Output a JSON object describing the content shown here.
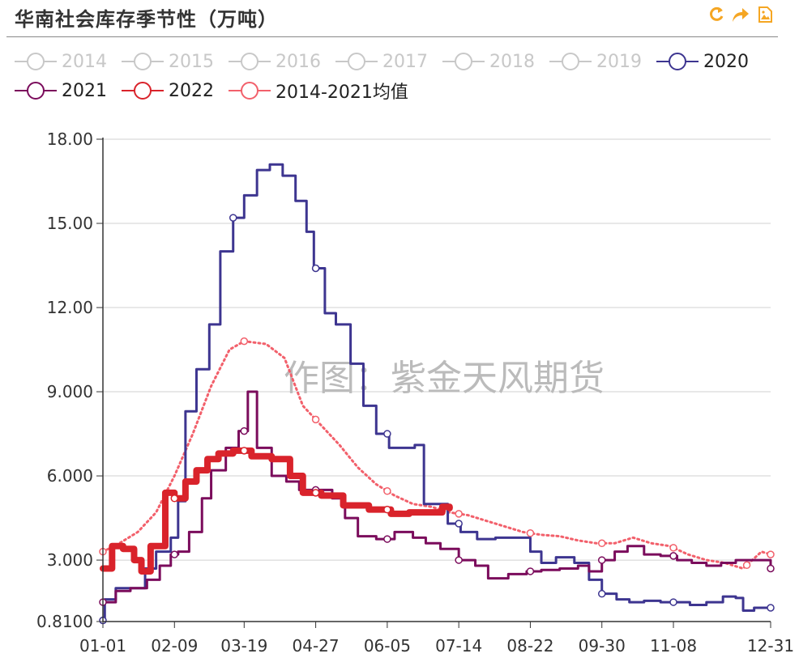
{
  "title": "华南社会库存季节性（万吨）",
  "toolbox": [
    "refresh-icon",
    "share-icon",
    "save-image-icon"
  ],
  "colors": {
    "accent": "#f5a623",
    "off": "#c8c8c8",
    "s2020": "#3d3590",
    "s2021": "#7b0c5c",
    "s2022": "#d9232b",
    "avg": "#f2606b",
    "grid": "#d0d0d0",
    "axis": "#333333"
  },
  "legend": [
    {
      "name": "2014",
      "on": false
    },
    {
      "name": "2015",
      "on": false
    },
    {
      "name": "2016",
      "on": false
    },
    {
      "name": "2017",
      "on": false
    },
    {
      "name": "2018",
      "on": false
    },
    {
      "name": "2019",
      "on": false
    },
    {
      "name": "2020",
      "on": true,
      "color": "#3d3590"
    },
    {
      "name": "2021",
      "on": true,
      "color": "#7b0c5c"
    },
    {
      "name": "2022",
      "on": true,
      "color": "#d9232b"
    },
    {
      "name": "2014-2021均值",
      "on": true,
      "color": "#f2606b"
    }
  ],
  "watermark": "作图：紫金天风期货",
  "chart_data": {
    "type": "line",
    "title": "华南社会库存季节性（万吨）",
    "x_domain_days": [
      1,
      365
    ],
    "xticks": [
      {
        "day": 1,
        "label": "01-01"
      },
      {
        "day": 40,
        "label": "02-09"
      },
      {
        "day": 78,
        "label": "03-19"
      },
      {
        "day": 117,
        "label": "04-27"
      },
      {
        "day": 156,
        "label": "06-05"
      },
      {
        "day": 195,
        "label": "07-14"
      },
      {
        "day": 234,
        "label": "08-22"
      },
      {
        "day": 273,
        "label": "09-30"
      },
      {
        "day": 312,
        "label": "11-08"
      },
      {
        "day": 365,
        "label": "12-31"
      }
    ],
    "ylim": [
      0.81,
      18.0
    ],
    "yticks": [
      {
        "value": 0.81,
        "label": "0.8100"
      },
      {
        "value": 3.0,
        "label": "3.000"
      },
      {
        "value": 6.0,
        "label": "6.000"
      },
      {
        "value": 9.0,
        "label": "9.000"
      },
      {
        "value": 12.0,
        "label": "12.00"
      },
      {
        "value": 15.0,
        "label": "15.00"
      },
      {
        "value": 18.0,
        "label": "18.00"
      }
    ],
    "series": [
      {
        "name": "2020",
        "step": true,
        "color": "#3d3590",
        "width": 3,
        "points": [
          [
            1,
            0.85
          ],
          [
            2,
            1.6
          ],
          [
            8,
            2.0
          ],
          [
            24,
            2.7
          ],
          [
            30,
            3.3
          ],
          [
            38,
            3.8
          ],
          [
            42,
            5.1
          ],
          [
            46,
            8.3
          ],
          [
            52,
            9.8
          ],
          [
            59,
            11.4
          ],
          [
            65,
            14.0
          ],
          [
            72,
            15.2
          ],
          [
            78,
            16.0
          ],
          [
            85,
            16.9
          ],
          [
            92,
            17.1
          ],
          [
            99,
            16.7
          ],
          [
            106,
            15.8
          ],
          [
            112,
            14.7
          ],
          [
            116,
            13.4
          ],
          [
            122,
            11.8
          ],
          [
            128,
            11.4
          ],
          [
            136,
            10.0
          ],
          [
            143,
            8.5
          ],
          [
            150,
            7.5
          ],
          [
            157,
            7.0
          ],
          [
            164,
            7.0
          ],
          [
            171,
            7.1
          ],
          [
            176,
            5.0
          ],
          [
            189,
            4.3
          ],
          [
            196,
            4.0
          ],
          [
            205,
            3.75
          ],
          [
            215,
            3.8
          ],
          [
            225,
            3.8
          ],
          [
            234,
            3.3
          ],
          [
            240,
            2.9
          ],
          [
            248,
            3.1
          ],
          [
            258,
            2.9
          ],
          [
            266,
            2.3
          ],
          [
            273,
            1.8
          ],
          [
            281,
            1.6
          ],
          [
            288,
            1.5
          ],
          [
            296,
            1.55
          ],
          [
            305,
            1.5
          ],
          [
            312,
            1.5
          ],
          [
            321,
            1.4
          ],
          [
            330,
            1.5
          ],
          [
            339,
            1.7
          ],
          [
            346,
            1.65
          ],
          [
            350,
            1.2
          ],
          [
            356,
            1.3
          ],
          [
            365,
            1.3
          ]
        ]
      },
      {
        "name": "2021",
        "step": true,
        "color": "#7b0c5c",
        "width": 3,
        "points": [
          [
            1,
            1.5
          ],
          [
            3,
            1.5
          ],
          [
            8,
            1.9
          ],
          [
            16,
            2.0
          ],
          [
            25,
            2.3
          ],
          [
            32,
            2.8
          ],
          [
            38,
            3.2
          ],
          [
            42,
            3.3
          ],
          [
            48,
            4.0
          ],
          [
            55,
            5.2
          ],
          [
            60,
            6.2
          ],
          [
            68,
            7.0
          ],
          [
            75,
            7.6
          ],
          [
            80,
            9.0
          ],
          [
            85,
            7.0
          ],
          [
            93,
            6.0
          ],
          [
            101,
            5.8
          ],
          [
            108,
            5.5
          ],
          [
            116,
            5.5
          ],
          [
            126,
            5.2
          ],
          [
            133,
            4.5
          ],
          [
            140,
            3.85
          ],
          [
            150,
            3.75
          ],
          [
            160,
            4.0
          ],
          [
            170,
            3.8
          ],
          [
            177,
            3.6
          ],
          [
            185,
            3.4
          ],
          [
            195,
            3.0
          ],
          [
            204,
            2.8
          ],
          [
            211,
            2.35
          ],
          [
            222,
            2.5
          ],
          [
            232,
            2.6
          ],
          [
            240,
            2.65
          ],
          [
            250,
            2.7
          ],
          [
            260,
            2.8
          ],
          [
            266,
            2.6
          ],
          [
            273,
            3.0
          ],
          [
            280,
            3.3
          ],
          [
            287,
            3.5
          ],
          [
            296,
            3.2
          ],
          [
            305,
            3.15
          ],
          [
            314,
            3.0
          ],
          [
            322,
            2.9
          ],
          [
            330,
            2.8
          ],
          [
            338,
            2.9
          ],
          [
            346,
            3.0
          ],
          [
            355,
            3.0
          ],
          [
            360,
            3.0
          ],
          [
            365,
            2.7
          ]
        ]
      },
      {
        "name": "2022",
        "step": true,
        "color": "#d9232b",
        "width": 8,
        "points": [
          [
            1,
            2.7
          ],
          [
            6,
            3.5
          ],
          [
            12,
            3.4
          ],
          [
            18,
            3.0
          ],
          [
            22,
            2.6
          ],
          [
            27,
            3.5
          ],
          [
            35,
            5.4
          ],
          [
            40,
            5.2
          ],
          [
            46,
            5.8
          ],
          [
            52,
            6.2
          ],
          [
            58,
            6.6
          ],
          [
            64,
            6.8
          ],
          [
            72,
            6.9
          ],
          [
            82,
            6.7
          ],
          [
            93,
            6.6
          ],
          [
            103,
            6.0
          ],
          [
            110,
            5.4
          ],
          [
            120,
            5.3
          ],
          [
            132,
            4.95
          ],
          [
            146,
            4.8
          ],
          [
            158,
            4.65
          ],
          [
            168,
            4.7
          ],
          [
            178,
            4.7
          ],
          [
            186,
            4.9
          ],
          [
            190,
            4.85
          ]
        ]
      },
      {
        "name": "2014-2021均值",
        "step": false,
        "color": "#f2606b",
        "width": 3,
        "dotted": true,
        "points": [
          [
            1,
            3.3
          ],
          [
            10,
            3.6
          ],
          [
            20,
            4.0
          ],
          [
            30,
            4.7
          ],
          [
            40,
            6.0
          ],
          [
            50,
            7.5
          ],
          [
            60,
            9.2
          ],
          [
            70,
            10.5
          ],
          [
            78,
            10.8
          ],
          [
            90,
            10.7
          ],
          [
            100,
            10.2
          ],
          [
            110,
            8.5
          ],
          [
            120,
            7.8
          ],
          [
            130,
            7.1
          ],
          [
            140,
            6.3
          ],
          [
            150,
            5.7
          ],
          [
            160,
            5.3
          ],
          [
            170,
            5.0
          ],
          [
            180,
            4.9
          ],
          [
            190,
            4.7
          ],
          [
            200,
            4.6
          ],
          [
            210,
            4.4
          ],
          [
            220,
            4.2
          ],
          [
            230,
            4.0
          ],
          [
            240,
            3.9
          ],
          [
            250,
            3.85
          ],
          [
            260,
            3.7
          ],
          [
            270,
            3.6
          ],
          [
            280,
            3.6
          ],
          [
            290,
            3.8
          ],
          [
            300,
            3.6
          ],
          [
            310,
            3.5
          ],
          [
            320,
            3.2
          ],
          [
            330,
            3.0
          ],
          [
            340,
            2.9
          ],
          [
            350,
            2.7
          ],
          [
            355,
            3.0
          ],
          [
            360,
            3.3
          ],
          [
            365,
            3.2
          ]
        ]
      }
    ],
    "markers": [
      {
        "series": "2020",
        "days": [
          1,
          72,
          117,
          156,
          195,
          273,
          312,
          365
        ]
      },
      {
        "series": "2021",
        "days": [
          1,
          40,
          78,
          117,
          156,
          195,
          234,
          273,
          312,
          365
        ]
      },
      {
        "series": "2022",
        "days": [
          40,
          78,
          117,
          156
        ]
      },
      {
        "series": "2014-2021均值",
        "days": [
          1,
          78,
          117,
          156,
          195,
          234,
          273,
          312,
          352,
          365
        ]
      }
    ]
  }
}
